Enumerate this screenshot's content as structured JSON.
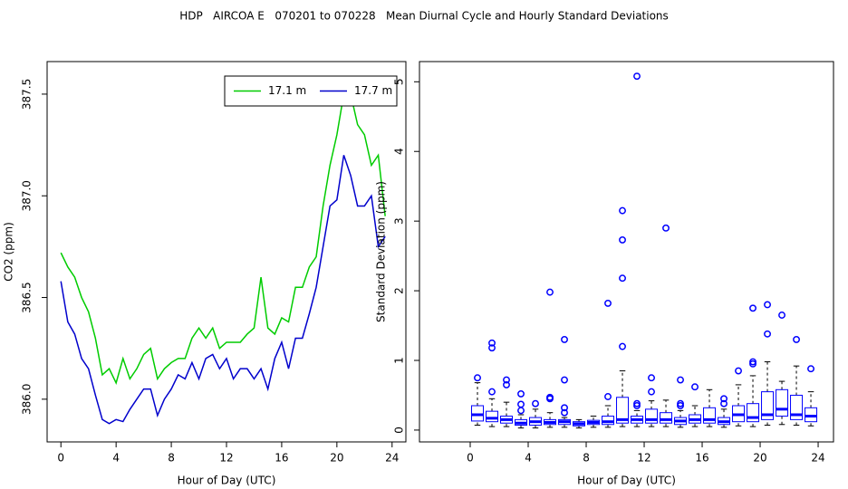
{
  "title": "HDP   AIRCOA E   070201 to 070228   Mean Diurnal Cycle and Hourly Standard Deviations",
  "chart_data": [
    {
      "type": "line",
      "x_label": "Hour of Day (UTC)",
      "y_label": "CO2 (ppm)",
      "x": [
        0,
        0.5,
        1,
        1.5,
        2,
        2.5,
        3,
        3.5,
        4,
        4.5,
        5,
        5.5,
        6,
        6.5,
        7,
        7.5,
        8,
        8.5,
        9,
        9.5,
        10,
        10.5,
        11,
        11.5,
        12,
        12.5,
        13,
        13.5,
        14,
        14.5,
        15,
        15.5,
        16,
        16.5,
        17,
        17.5,
        18,
        18.5,
        19,
        19.5,
        20,
        20.5,
        21,
        21.5,
        22,
        22.5,
        23,
        23.5
      ],
      "series": [
        {
          "name": "17.1 m",
          "color": "#00cc00",
          "values": [
            386.72,
            386.65,
            386.6,
            386.5,
            386.43,
            386.3,
            386.12,
            386.15,
            386.08,
            386.2,
            386.1,
            386.15,
            386.22,
            386.25,
            386.1,
            386.15,
            386.18,
            386.2,
            386.2,
            386.3,
            386.35,
            386.3,
            386.35,
            386.25,
            386.28,
            386.28,
            386.28,
            386.32,
            386.35,
            386.6,
            386.35,
            386.32,
            386.4,
            386.38,
            386.55,
            386.55,
            386.65,
            386.7,
            386.95,
            387.15,
            387.3,
            387.5,
            387.5,
            387.35,
            387.3,
            387.15,
            387.2,
            386.9
          ]
        },
        {
          "name": "17.7 m",
          "color": "#0000cc",
          "values": [
            386.58,
            386.38,
            386.32,
            386.2,
            386.15,
            386.02,
            385.9,
            385.88,
            385.9,
            385.89,
            385.95,
            386.0,
            386.05,
            386.05,
            385.92,
            386.0,
            386.05,
            386.12,
            386.1,
            386.18,
            386.1,
            386.2,
            386.22,
            386.15,
            386.2,
            386.1,
            386.15,
            386.15,
            386.1,
            386.15,
            386.05,
            386.2,
            386.28,
            386.15,
            386.3,
            386.3,
            386.42,
            386.55,
            386.75,
            386.95,
            386.98,
            387.2,
            387.1,
            386.95,
            386.95,
            387.0,
            386.75,
            386.8
          ]
        }
      ],
      "xlim": [
        -1,
        25
      ],
      "ylim": [
        385.79,
        387.66
      ],
      "xticks": [
        0,
        4,
        8,
        12,
        16,
        20,
        24
      ],
      "yticks": [
        {
          "value": 386.0,
          "label": "386.0"
        },
        386.5,
        {
          "value": 387.0,
          "label": "387.0"
        },
        387.5
      ],
      "legend": "topright"
    },
    {
      "type": "box",
      "x_label": "Hour of Day (UTC)",
      "y_label": "Standard Deviation (ppm)",
      "color": "#0000ff",
      "x": [
        0.5,
        1.5,
        2.5,
        3.5,
        4.5,
        5.5,
        6.5,
        7.5,
        8.5,
        9.5,
        10.5,
        11.5,
        12.5,
        13.5,
        14.5,
        15.5,
        16.5,
        17.5,
        18.5,
        19.5,
        20.5,
        21.5,
        22.5,
        23.5
      ],
      "whisker_low": [
        0.07,
        0.05,
        0.05,
        0.03,
        0.03,
        0.04,
        0.04,
        0.03,
        0.04,
        0.04,
        0.05,
        0.05,
        0.05,
        0.05,
        0.04,
        0.05,
        0.05,
        0.04,
        0.06,
        0.05,
        0.07,
        0.08,
        0.07,
        0.06
      ],
      "q1": [
        0.13,
        0.12,
        0.1,
        0.07,
        0.07,
        0.08,
        0.08,
        0.06,
        0.08,
        0.08,
        0.1,
        0.1,
        0.1,
        0.1,
        0.08,
        0.1,
        0.1,
        0.08,
        0.12,
        0.12,
        0.15,
        0.2,
        0.15,
        0.12
      ],
      "median": [
        0.22,
        0.17,
        0.15,
        0.1,
        0.12,
        0.11,
        0.12,
        0.09,
        0.11,
        0.12,
        0.15,
        0.15,
        0.15,
        0.15,
        0.13,
        0.15,
        0.15,
        0.12,
        0.22,
        0.18,
        0.22,
        0.3,
        0.22,
        0.2
      ],
      "q3": [
        0.35,
        0.27,
        0.2,
        0.15,
        0.18,
        0.15,
        0.15,
        0.12,
        0.14,
        0.2,
        0.47,
        0.2,
        0.3,
        0.25,
        0.18,
        0.22,
        0.32,
        0.18,
        0.35,
        0.38,
        0.55,
        0.58,
        0.5,
        0.32
      ],
      "whisker_high": [
        0.68,
        0.45,
        0.4,
        0.22,
        0.3,
        0.25,
        0.18,
        0.15,
        0.2,
        0.35,
        0.85,
        0.28,
        0.42,
        0.43,
        0.28,
        0.35,
        0.58,
        0.3,
        0.65,
        0.78,
        0.98,
        0.7,
        0.92,
        0.55
      ],
      "outliers": [
        [
          0.75
        ],
        [
          0.55,
          1.18,
          1.25
        ],
        [
          0.65,
          0.72
        ],
        [
          0.28,
          0.37,
          0.52
        ],
        [
          0.38
        ],
        [
          0.45,
          0.47,
          1.98
        ],
        [
          0.25,
          0.32,
          0.72,
          1.3
        ],
        [],
        [],
        [
          0.48,
          1.82
        ],
        [
          1.2,
          2.18,
          2.73,
          3.15
        ],
        [
          0.35,
          0.38,
          5.08
        ],
        [
          0.55,
          0.75
        ],
        [
          2.9
        ],
        [
          0.35,
          0.38,
          0.72
        ],
        [
          0.62
        ],
        [],
        [
          0.38,
          0.45
        ],
        [
          0.85
        ],
        [
          0.95,
          0.98,
          1.75
        ],
        [
          1.38,
          1.8
        ],
        [
          1.65
        ],
        [
          1.3
        ],
        [
          0.88
        ]
      ],
      "xlim": [
        -3.5,
        25.06
      ],
      "ylim": [
        -0.17,
        5.29
      ],
      "xticks": [
        0,
        4,
        8,
        12,
        16,
        20,
        24
      ],
      "yticks": [
        0,
        1,
        2,
        3,
        4,
        5
      ]
    }
  ]
}
